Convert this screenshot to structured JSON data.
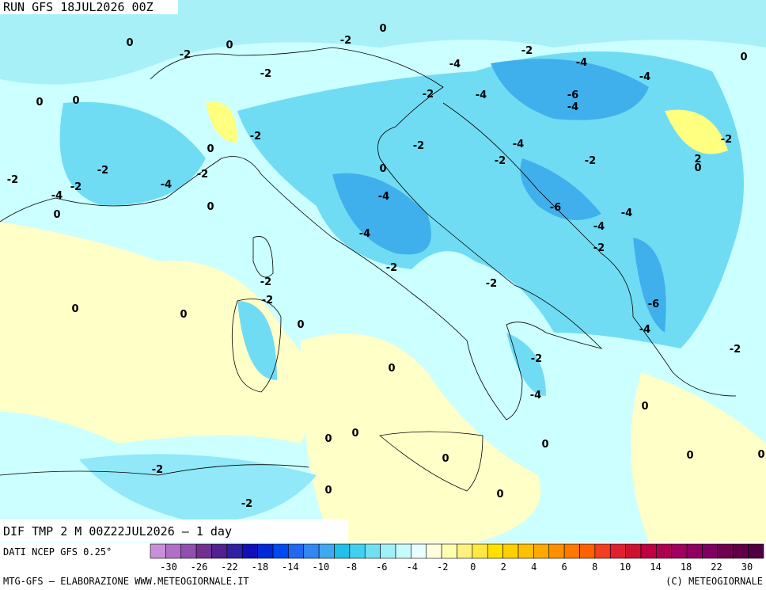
{
  "header": {
    "title": "RUN GFS 18JUL2026 00Z"
  },
  "map": {
    "caption": "DIF TMP 2 M 00Z22JUL2026 – 1 day",
    "contour_labels": [
      "0",
      "0",
      "-2",
      "-2",
      "0",
      "-2",
      "-4",
      "-4",
      "0",
      "-2",
      "-4",
      "0",
      "0",
      "-2",
      "-4",
      "-6",
      "-4",
      "-2",
      "-2",
      "-4",
      "-2",
      "0",
      "-2",
      "-2",
      "2",
      "0",
      "-2",
      "-2",
      "0",
      "-2",
      "-4",
      "-2",
      "-4",
      "-4",
      "-6",
      "-4",
      "0",
      "0",
      "-4",
      "-4",
      "-2",
      "-2",
      "-2",
      "-2",
      "-2",
      "-6",
      "0",
      "0",
      "0",
      "-4",
      "-2",
      "-2",
      "0",
      "-4",
      "0",
      "0",
      "0",
      "0",
      "0",
      "0",
      "0",
      "-2",
      "0",
      "0",
      "-2"
    ]
  },
  "colorbar": {
    "source": "DATI NCEP GFS 0.25°",
    "labels": [
      -30,
      -26,
      -22,
      -18,
      -14,
      -10,
      -8,
      -6,
      -4,
      -2,
      0,
      2,
      4,
      6,
      8,
      10,
      14,
      18,
      22,
      30
    ],
    "colors": [
      "#c890d8",
      "#b070c8",
      "#9050b0",
      "#703090",
      "#502090",
      "#3020a0",
      "#1010b8",
      "#0028d8",
      "#0048f0",
      "#2068f0",
      "#3088f0",
      "#40a8f0",
      "#20c0e8",
      "#40d0f0",
      "#70e0f0",
      "#a0f0f8",
      "#c8fafa",
      "#e8ffff",
      "#ffffe0",
      "#ffffb0",
      "#fff080",
      "#ffe840",
      "#ffe000",
      "#ffd000",
      "#ffc000",
      "#ffa800",
      "#ff9000",
      "#ff7800",
      "#ff6000",
      "#f04020",
      "#e02030",
      "#d01030",
      "#c00040",
      "#b00050",
      "#a00060",
      "#900060",
      "#800060",
      "#700050",
      "#600048",
      "#500040"
    ]
  },
  "footer": {
    "left": "MTG-GFS – ELABORAZIONE WWW.METEOGIORNALE.IT",
    "right": "(C) METEOGIORNALE"
  }
}
